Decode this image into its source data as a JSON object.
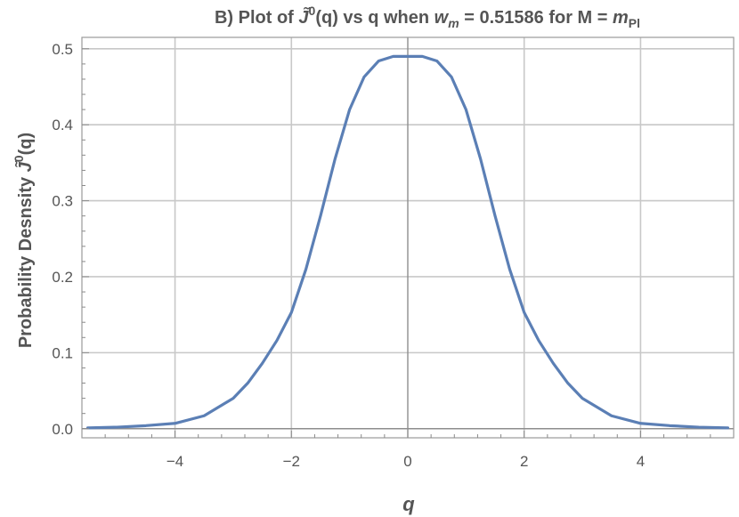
{
  "chart_data": {
    "type": "line",
    "title": {
      "prefix": "B) Plot of ",
      "symbol": "J̃",
      "superscript": "0",
      "middle": "(q) vs q when ",
      "param_symbol": "w",
      "param_subscript": "m",
      "param_value": " = 0.51586 for M = ",
      "mass_symbol": "m",
      "mass_subscript": "Pl"
    },
    "xlabel": "q",
    "ylabel": {
      "prefix": "Probability  Desnsity ",
      "symbol": "J̃",
      "superscript": "0",
      "suffix": "(q)"
    },
    "xlim": [
      -5.6,
      5.6
    ],
    "ylim": [
      -0.012,
      0.515
    ],
    "x_ticks": [
      -4,
      -2,
      0,
      2,
      4
    ],
    "x_tick_labels": [
      "−4",
      "−2",
      "0",
      "2",
      "4"
    ],
    "y_ticks": [
      0.0,
      0.1,
      0.2,
      0.3,
      0.4,
      0.5
    ],
    "y_tick_labels": [
      "0.0",
      "0.1",
      "0.2",
      "0.3",
      "0.4",
      "0.5"
    ],
    "grid": true,
    "line_color": "#5b7fb5",
    "series": [
      {
        "x": [
          -5.5,
          -5.0,
          -4.5,
          -4.0,
          -3.5,
          -3.0,
          -2.75,
          -2.5,
          -2.25,
          -2.0,
          -1.75,
          -1.5,
          -1.25,
          -1.0,
          -0.75,
          -0.5,
          -0.25,
          0.0,
          0.25,
          0.5,
          0.75,
          1.0,
          1.25,
          1.5,
          1.75,
          2.0,
          2.25,
          2.5,
          2.75,
          3.0,
          3.5,
          4.0,
          4.5,
          5.0,
          5.5
        ],
        "y": [
          0.001,
          0.002,
          0.004,
          0.007,
          0.017,
          0.04,
          0.06,
          0.086,
          0.116,
          0.153,
          0.21,
          0.28,
          0.355,
          0.42,
          0.463,
          0.484,
          0.49,
          0.49,
          0.49,
          0.484,
          0.463,
          0.42,
          0.355,
          0.28,
          0.21,
          0.153,
          0.116,
          0.086,
          0.06,
          0.04,
          0.017,
          0.007,
          0.004,
          0.002,
          0.001
        ]
      }
    ]
  }
}
